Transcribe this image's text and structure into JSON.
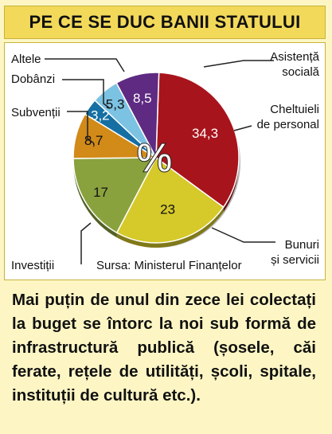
{
  "title": "PE CE SE DUC BANII STATULUI",
  "chart_data": {
    "type": "pie",
    "center_label": "%",
    "source": "Sursa: Ministerul Finanțelor",
    "slices": [
      {
        "label_lines": [
          "Asistență",
          "socială"
        ],
        "value": 34.3,
        "display": "34,3",
        "color": "#a8141c"
      },
      {
        "label_lines": [
          "Bunuri",
          "și servicii"
        ],
        "value": 23,
        "display": "23",
        "color": "#d6c92a"
      },
      {
        "label_lines": [
          "Investiții"
        ],
        "value": 17,
        "display": "17",
        "color": "#8aa23e"
      },
      {
        "label_lines": [
          "Subvenții"
        ],
        "value": 8.7,
        "display": "8,7",
        "color": "#d28a18"
      },
      {
        "label_lines": [
          "Dobânzi"
        ],
        "value": 3.2,
        "display": "3,2",
        "color": "#156fa3"
      },
      {
        "label_lines": [
          "Altele"
        ],
        "value": 5.3,
        "display": "5,3",
        "color": "#7cc2e2"
      },
      {
        "label_lines": [
          "Cheltuieli",
          "de personal"
        ],
        "value": 8.5,
        "display": "8,5",
        "color": "#5e2a82"
      }
    ]
  },
  "footer": "Mai puțin de unul din zece lei colectați la buget se întorc la noi sub formă de infrastructură publică (șosele, căi ferate, rețele de utilități, școli, spitale, instituții de cultură etc.)."
}
